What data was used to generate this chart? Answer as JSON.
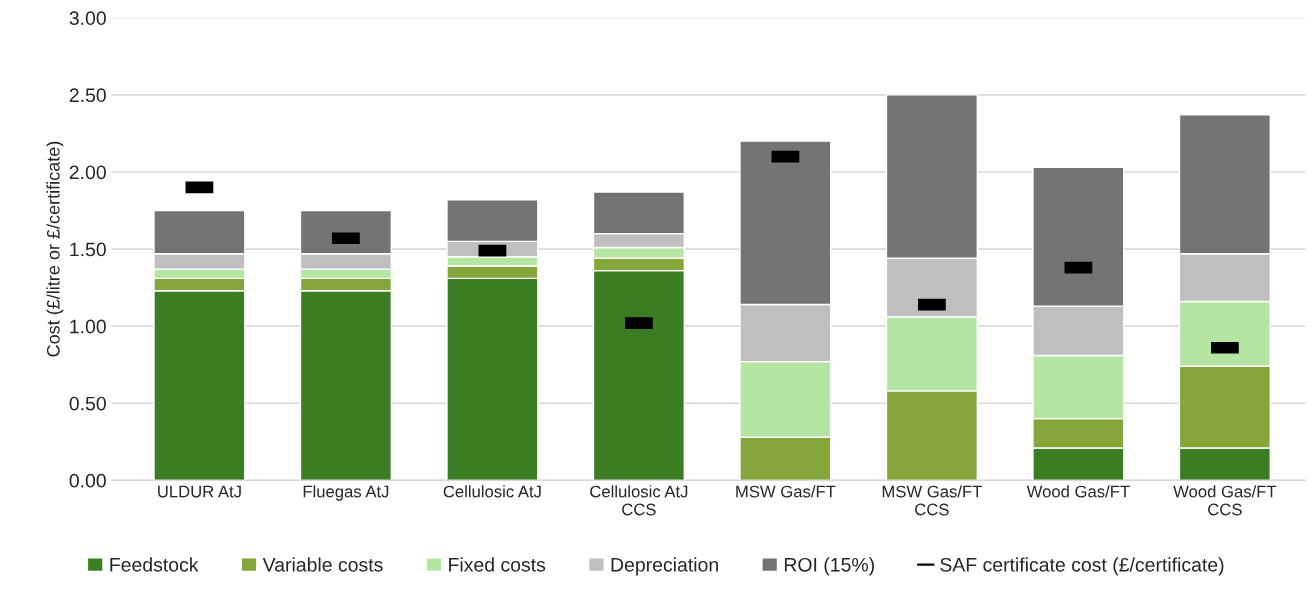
{
  "chart_data": {
    "type": "bar",
    "stacked": true,
    "ylabel": "Cost (£/litre or £/certificate)",
    "categories": [
      "ULDUR AtJ",
      "Fluegas AtJ",
      "Cellulosic AtJ",
      "Cellulosic AtJ\nCCS",
      "MSW Gas/FT",
      "MSW Gas/FT\nCCS",
      "Wood Gas/FT",
      "Wood Gas/FT\nCCS"
    ],
    "series": [
      {
        "name": "Feedstock",
        "color": "#3b7d23",
        "values": [
          1.23,
          1.23,
          1.31,
          1.36,
          0,
          0,
          0.21,
          0.21
        ]
      },
      {
        "name": "Variable costs",
        "color": "#84a63a",
        "values": [
          0.08,
          0.08,
          0.08,
          0.08,
          0.28,
          0.58,
          0.19,
          0.53
        ]
      },
      {
        "name": "Fixed costs",
        "color": "#b4e5a2",
        "values": [
          0.06,
          0.06,
          0.06,
          0.07,
          0.49,
          0.48,
          0.41,
          0.42
        ]
      },
      {
        "name": "Depreciation",
        "color": "#bfbfbf",
        "values": [
          0.1,
          0.1,
          0.1,
          0.09,
          0.37,
          0.38,
          0.32,
          0.31
        ]
      },
      {
        "name": "ROI (15%)",
        "color": "#747474",
        "values": [
          0.28,
          0.28,
          0.27,
          0.27,
          1.06,
          1.06,
          0.9,
          0.9
        ]
      },
      {
        "name": "SAF certificate cost (£/certificate)",
        "type": "scatter",
        "color": "#000000",
        "values": [
          1.9,
          1.57,
          1.49,
          1.02,
          2.1,
          1.14,
          1.38,
          0.86
        ]
      }
    ],
    "ylim": [
      0,
      3
    ],
    "yticks": [
      {
        "value": 0,
        "label": "0.00"
      },
      {
        "value": 0.5,
        "label": "0.50"
      },
      {
        "value": 1,
        "label": "1.00"
      },
      {
        "value": 1.5,
        "label": "1.50"
      },
      {
        "value": 2,
        "label": "2.00"
      },
      {
        "value": 2.5,
        "label": "2.50"
      },
      {
        "value": 3,
        "label": "3.00"
      }
    ],
    "grid": "y",
    "legend": "bottom"
  }
}
